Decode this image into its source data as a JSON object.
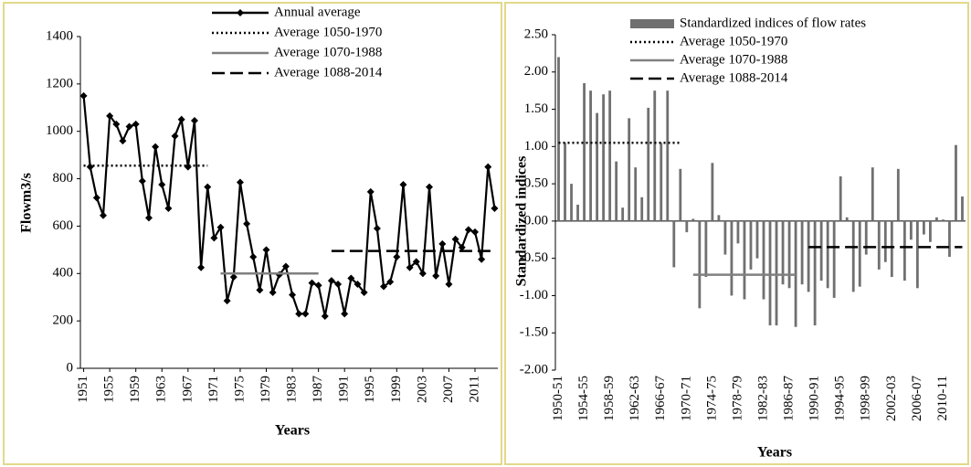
{
  "chart_data": [
    {
      "type": "line",
      "x_label": "Years",
      "y_label": "Flowm3/s",
      "x": [
        1951,
        1952,
        1953,
        1954,
        1955,
        1956,
        1957,
        1958,
        1959,
        1960,
        1961,
        1962,
        1963,
        1964,
        1965,
        1966,
        1967,
        1968,
        1969,
        1970,
        1971,
        1972,
        1973,
        1974,
        1975,
        1976,
        1977,
        1978,
        1979,
        1980,
        1981,
        1982,
        1983,
        1984,
        1985,
        1986,
        1987,
        1988,
        1989,
        1990,
        1991,
        1992,
        1993,
        1994,
        1995,
        1996,
        1997,
        1998,
        1999,
        2000,
        2001,
        2002,
        2003,
        2004,
        2005,
        2006,
        2007,
        2008,
        2009,
        2010,
        2011,
        2012,
        2013,
        2014
      ],
      "xlim": [
        1950.5,
        2014.5
      ],
      "xticks": [
        1951,
        1955,
        1959,
        1963,
        1967,
        1971,
        1975,
        1979,
        1983,
        1987,
        1991,
        1995,
        1999,
        2003,
        2007,
        2011
      ],
      "ylim": [
        0,
        1400
      ],
      "yticks": [
        0,
        200,
        400,
        600,
        800,
        1000,
        1200,
        1400
      ],
      "series": [
        {
          "name": "Annual average",
          "color": "#000000",
          "dash": "solid",
          "marker": "diamond",
          "values": [
            1150,
            850,
            720,
            645,
            1065,
            1030,
            960,
            1020,
            1030,
            790,
            635,
            935,
            775,
            675,
            980,
            1050,
            850,
            1045,
            425,
            765,
            550,
            595,
            285,
            385,
            785,
            610,
            470,
            330,
            500,
            320,
            395,
            430,
            310,
            230,
            230,
            360,
            350,
            220,
            370,
            355,
            230,
            380,
            355,
            320,
            745,
            590,
            345,
            365,
            470,
            775,
            425,
            450,
            400,
            765,
            390,
            525,
            355,
            545,
            510,
            585,
            575,
            460,
            850,
            675
          ]
        },
        {
          "name": "Average 1050-1970",
          "color": "#000000",
          "dash": "dotted",
          "values": [
            855,
            855,
            855,
            855,
            855,
            855,
            855,
            855,
            855,
            855,
            855,
            855,
            855,
            855,
            855,
            855,
            855,
            855,
            855,
            855,
            null,
            null,
            null,
            null,
            null,
            null,
            null,
            null,
            null,
            null,
            null,
            null,
            null,
            null,
            null,
            null,
            null,
            null,
            null,
            null,
            null,
            null,
            null,
            null,
            null,
            null,
            null,
            null,
            null,
            null,
            null,
            null,
            null,
            null,
            null,
            null,
            null,
            null,
            null,
            null,
            null,
            null,
            null,
            null
          ]
        },
        {
          "name": "Average 1070-1988",
          "color": "#808080",
          "dash": "solid",
          "values": [
            null,
            null,
            null,
            null,
            null,
            null,
            null,
            null,
            null,
            null,
            null,
            null,
            null,
            null,
            null,
            null,
            null,
            null,
            null,
            null,
            null,
            400,
            400,
            400,
            400,
            400,
            400,
            400,
            400,
            400,
            400,
            400,
            400,
            400,
            400,
            400,
            400,
            null,
            null,
            null,
            null,
            null,
            null,
            null,
            null,
            null,
            null,
            null,
            null,
            null,
            null,
            null,
            null,
            null,
            null,
            null,
            null,
            null,
            null,
            null,
            null,
            null,
            null,
            null
          ]
        },
        {
          "name": "Average 1088-2014",
          "color": "#000000",
          "dash": "dashed",
          "values": [
            null,
            null,
            null,
            null,
            null,
            null,
            null,
            null,
            null,
            null,
            null,
            null,
            null,
            null,
            null,
            null,
            null,
            null,
            null,
            null,
            null,
            null,
            null,
            null,
            null,
            null,
            null,
            null,
            null,
            null,
            null,
            null,
            null,
            null,
            null,
            null,
            null,
            null,
            495,
            495,
            495,
            495,
            495,
            495,
            495,
            495,
            495,
            495,
            495,
            495,
            495,
            495,
            495,
            495,
            495,
            495,
            495,
            495,
            495,
            495,
            495,
            495,
            495,
            495
          ]
        }
      ]
    },
    {
      "type": "bar",
      "x_label": "Years",
      "y_label": "Standardized indices",
      "categories": [
        "1950-51",
        null,
        null,
        null,
        "1954-55",
        null,
        null,
        null,
        "1958-59",
        null,
        null,
        null,
        "1962-63",
        null,
        null,
        null,
        "1966-67",
        null,
        null,
        null,
        "1970-71",
        null,
        null,
        null,
        "1974-75",
        null,
        null,
        null,
        "1978-79",
        null,
        null,
        null,
        "1982-83",
        null,
        null,
        null,
        "1986-87",
        null,
        null,
        null,
        "1990-91",
        null,
        null,
        null,
        "1994-95",
        null,
        null,
        null,
        "1998-99",
        null,
        null,
        null,
        "2002-03",
        null,
        null,
        null,
        "2006-07",
        null,
        null,
        null,
        "2010-11",
        null,
        null,
        null
      ],
      "ylim": [
        -2,
        2.5
      ],
      "yticks": [
        {
          "value": -2,
          "label": "-2.00"
        },
        {
          "value": -1.5,
          "label": "-1.50"
        },
        {
          "value": -1,
          "label": "-1.00"
        },
        {
          "value": -0.5,
          "label": "-0.50"
        },
        {
          "value": 0,
          "label": "0.00"
        },
        {
          "value": 0.5,
          "label": "0.50"
        },
        {
          "value": 1,
          "label": "1.00"
        },
        {
          "value": 1.5,
          "label": "1.50"
        },
        {
          "value": 2,
          "label": "2.00"
        },
        {
          "value": 2.5,
          "label": "2.50"
        }
      ],
      "series": [
        {
          "name": "Standardized indices of flow rates",
          "type": "bar",
          "color": "#707070",
          "values": [
            2.2,
            1.05,
            0.5,
            0.22,
            1.85,
            1.75,
            1.45,
            1.7,
            1.75,
            0.8,
            0.18,
            1.38,
            0.72,
            0.32,
            1.52,
            1.75,
            1.05,
            1.75,
            -0.62,
            0.7,
            -0.15,
            0.03,
            -1.17,
            -0.75,
            0.78,
            0.08,
            -0.45,
            -1.0,
            -0.3,
            -1.05,
            -0.65,
            -0.5,
            -1.05,
            -1.4,
            -1.4,
            -0.85,
            -0.9,
            -1.42,
            -0.85,
            -0.95,
            -1.4,
            -0.8,
            -0.9,
            -1.03,
            0.6,
            0.05,
            -0.95,
            -0.88,
            -0.45,
            0.72,
            -0.65,
            -0.55,
            -0.75,
            0.7,
            -0.8,
            -0.25,
            -0.9,
            -0.18,
            -0.28,
            0.05,
            0.02,
            -0.48,
            1.02,
            0.33
          ]
        },
        {
          "name": "Average 1050-1970",
          "type": "line",
          "color": "#000000",
          "dash": "dotted",
          "values": [
            1.05,
            1.05,
            1.05,
            1.05,
            1.05,
            1.05,
            1.05,
            1.05,
            1.05,
            1.05,
            1.05,
            1.05,
            1.05,
            1.05,
            1.05,
            1.05,
            1.05,
            1.05,
            1.05,
            1.05,
            null,
            null,
            null,
            null,
            null,
            null,
            null,
            null,
            null,
            null,
            null,
            null,
            null,
            null,
            null,
            null,
            null,
            null,
            null,
            null,
            null,
            null,
            null,
            null,
            null,
            null,
            null,
            null,
            null,
            null,
            null,
            null,
            null,
            null,
            null,
            null,
            null,
            null,
            null,
            null,
            null,
            null,
            null,
            null
          ]
        },
        {
          "name": "Average 1070-1988",
          "type": "line",
          "color": "#808080",
          "dash": "solid",
          "values": [
            null,
            null,
            null,
            null,
            null,
            null,
            null,
            null,
            null,
            null,
            null,
            null,
            null,
            null,
            null,
            null,
            null,
            null,
            null,
            null,
            null,
            -0.72,
            -0.72,
            -0.72,
            -0.72,
            -0.72,
            -0.72,
            -0.72,
            -0.72,
            -0.72,
            -0.72,
            -0.72,
            -0.72,
            -0.72,
            -0.72,
            -0.72,
            -0.72,
            -0.72,
            null,
            null,
            null,
            null,
            null,
            null,
            null,
            null,
            null,
            null,
            null,
            null,
            null,
            null,
            null,
            null,
            null,
            null,
            null,
            null,
            null,
            null,
            null,
            null,
            null,
            null
          ]
        },
        {
          "name": "Average 1088-2014",
          "type": "line",
          "color": "#000000",
          "dash": "dashed",
          "values": [
            null,
            null,
            null,
            null,
            null,
            null,
            null,
            null,
            null,
            null,
            null,
            null,
            null,
            null,
            null,
            null,
            null,
            null,
            null,
            null,
            null,
            null,
            null,
            null,
            null,
            null,
            null,
            null,
            null,
            null,
            null,
            null,
            null,
            null,
            null,
            null,
            null,
            null,
            null,
            -0.35,
            -0.35,
            -0.35,
            -0.35,
            -0.35,
            -0.35,
            -0.35,
            -0.35,
            -0.35,
            -0.35,
            -0.35,
            -0.35,
            -0.35,
            -0.35,
            -0.35,
            -0.35,
            -0.35,
            -0.35,
            -0.35,
            -0.35,
            -0.35,
            -0.35,
            -0.35,
            -0.35,
            -0.35
          ]
        }
      ]
    }
  ]
}
